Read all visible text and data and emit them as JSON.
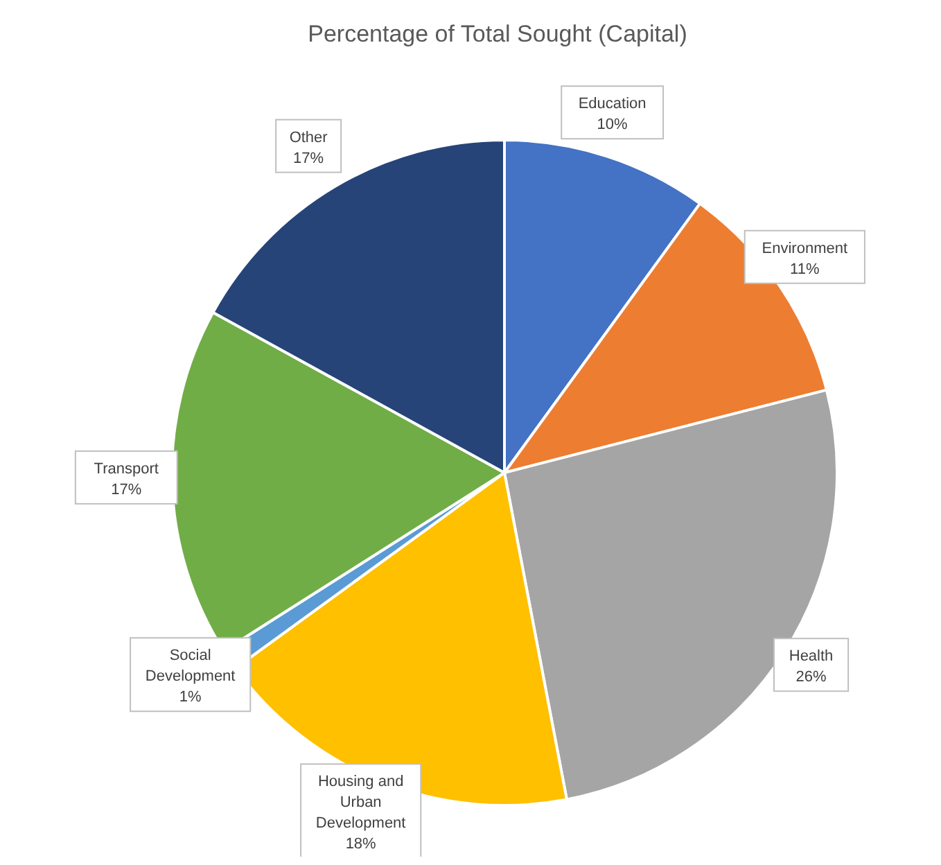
{
  "chart_data": {
    "type": "pie",
    "title": "Percentage of Total Sought (Capital)",
    "categories": [
      "Education",
      "Environment",
      "Health",
      "Housing and Urban Development",
      "Social Development",
      "Transport",
      "Other"
    ],
    "values": [
      10,
      11,
      26,
      18,
      1,
      17,
      17
    ],
    "value_labels": [
      "10%",
      "11%",
      "26%",
      "18%",
      "1%",
      "17%",
      "17%"
    ],
    "colors": [
      "#4472c4",
      "#ed7d31",
      "#a5a5a5",
      "#ffc000",
      "#5b9bd5",
      "#70ad47",
      "#264478"
    ],
    "legend": false
  }
}
